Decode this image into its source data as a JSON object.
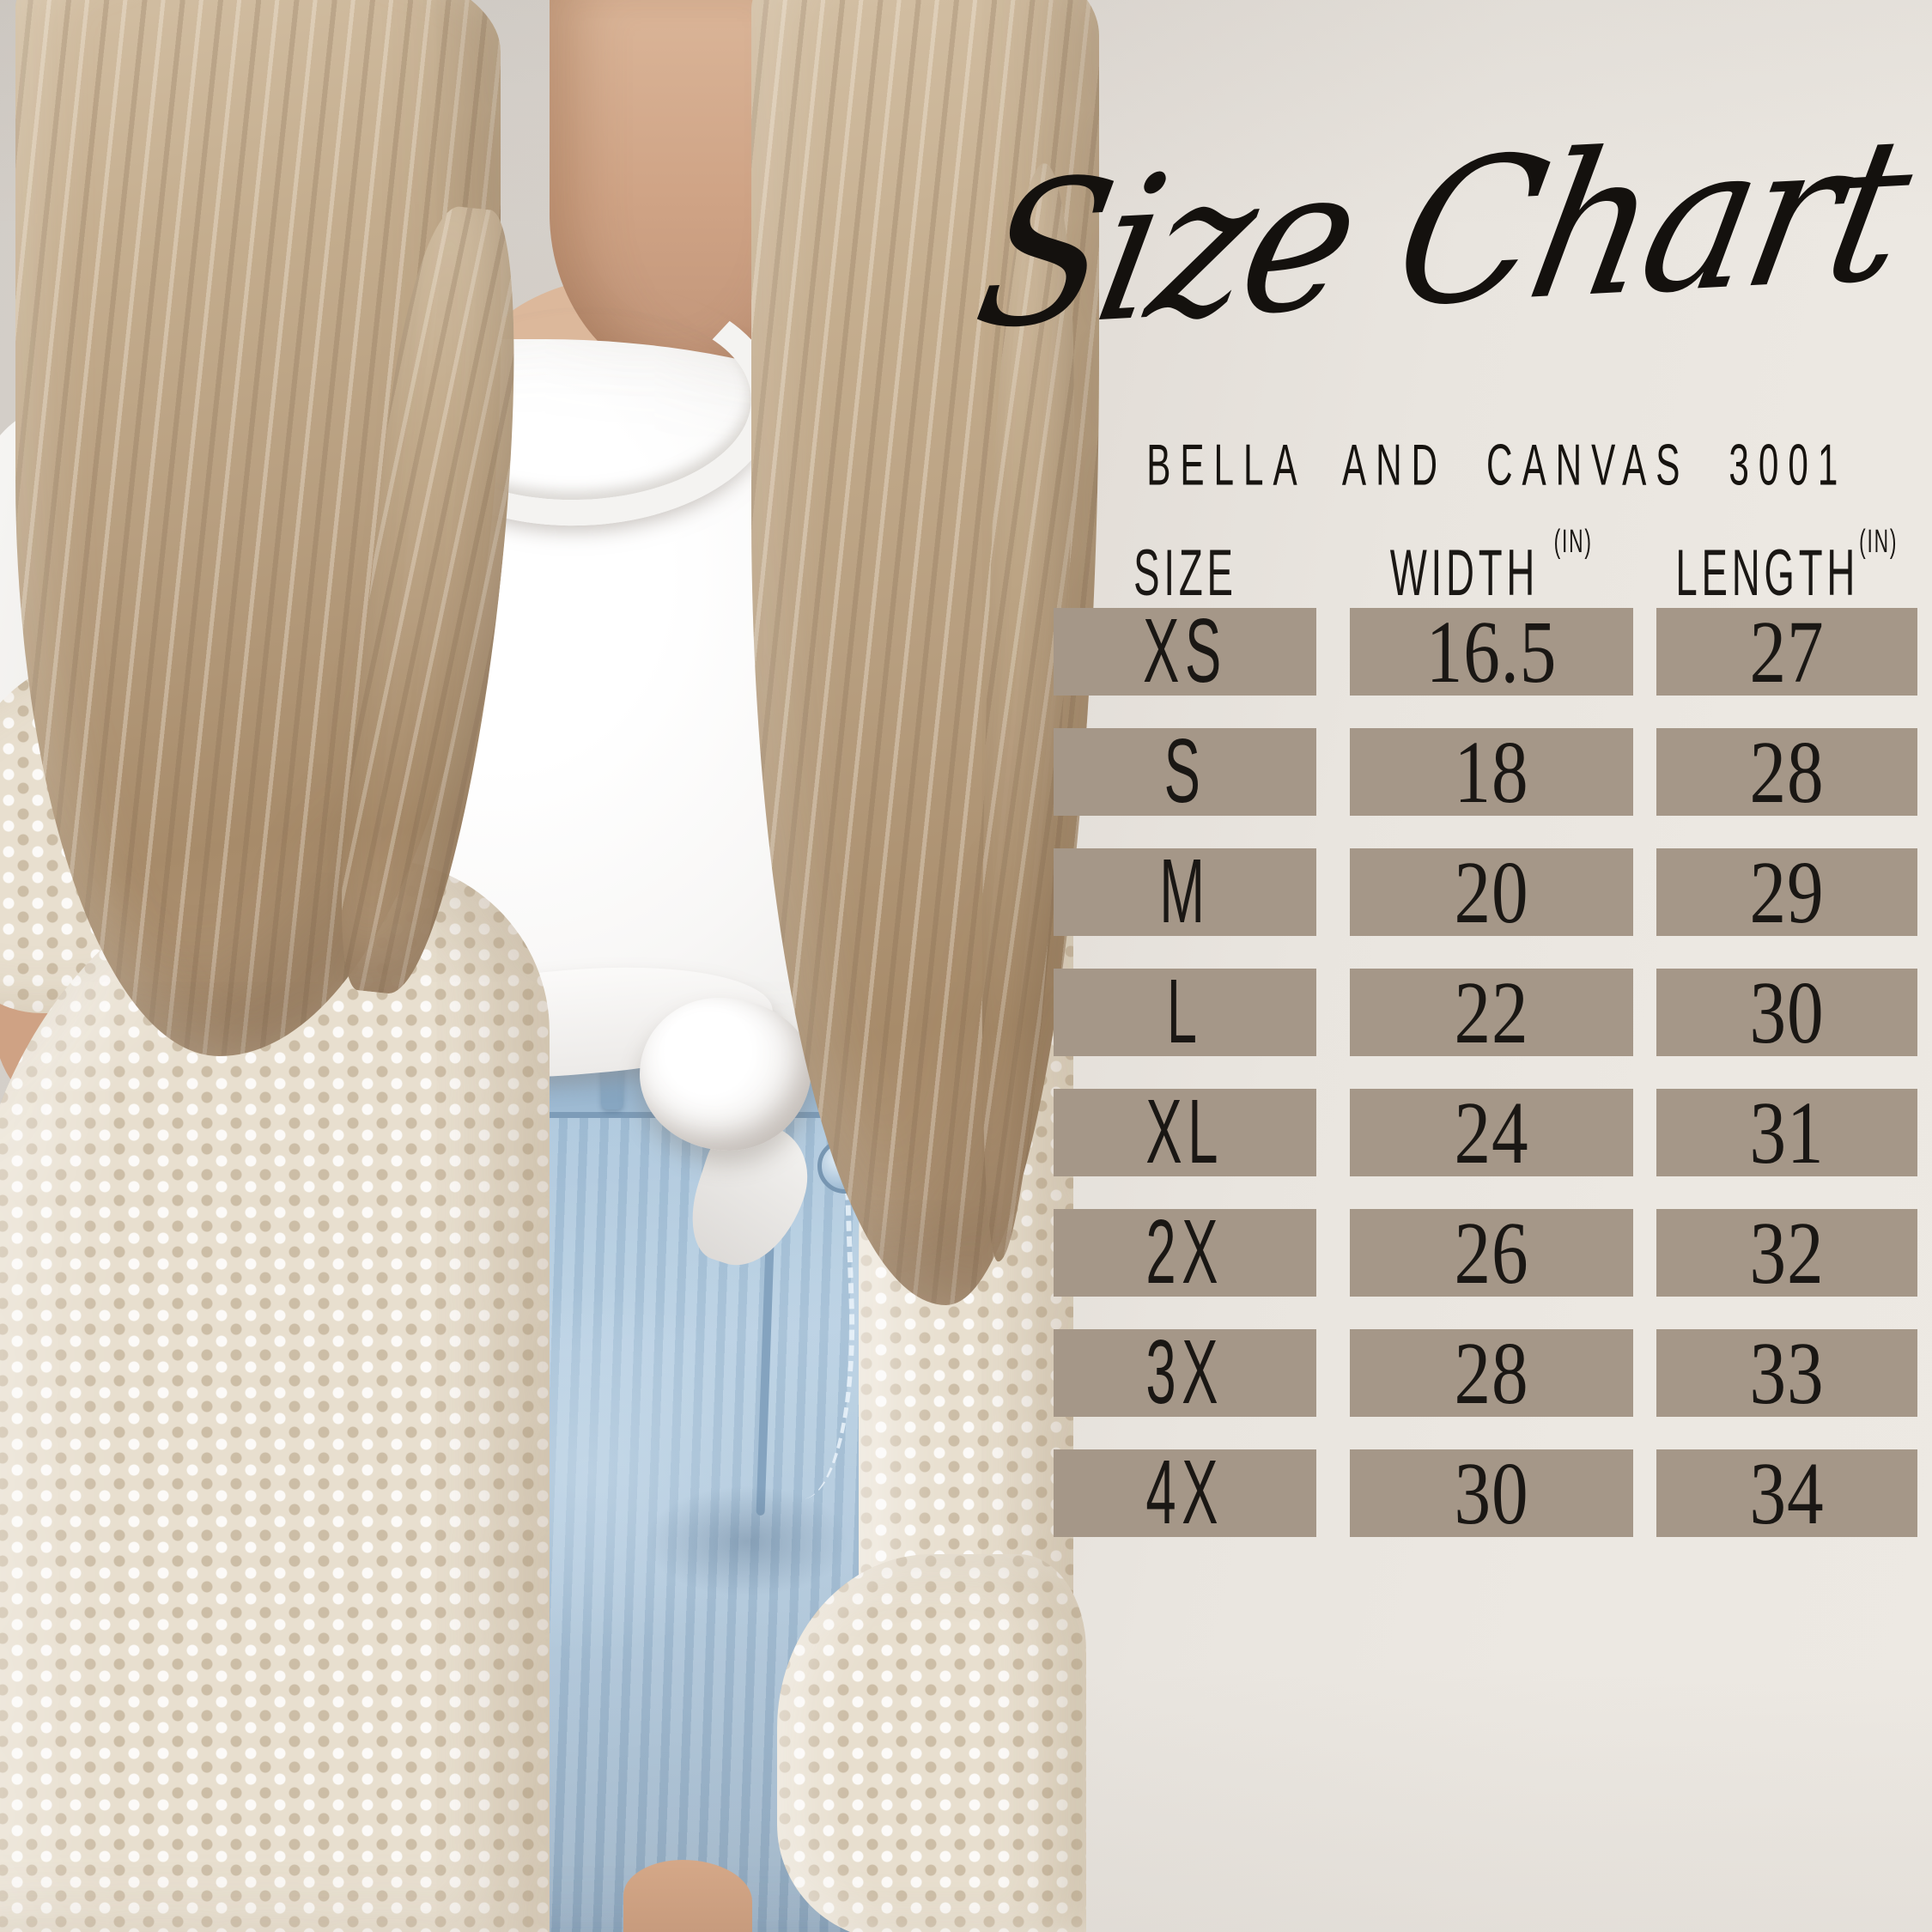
{
  "page": {
    "title": "Size Chart",
    "subtitle": "BELLA AND CANVAS 3001"
  },
  "table": {
    "headers": [
      {
        "label": "SIZE",
        "unit": ""
      },
      {
        "label": "WIDTH",
        "unit": "(IN)"
      },
      {
        "label": "LENGTH",
        "unit": "(IN)"
      }
    ],
    "rows": [
      {
        "size": "XS",
        "width": "16.5",
        "length": "27"
      },
      {
        "size": "S",
        "width": "18",
        "length": "28"
      },
      {
        "size": "M",
        "width": "20",
        "length": "29"
      },
      {
        "size": "L",
        "width": "22",
        "length": "30"
      },
      {
        "size": "XL",
        "width": "24",
        "length": "31"
      },
      {
        "size": "2X",
        "width": "26",
        "length": "32"
      },
      {
        "size": "3X",
        "width": "28",
        "length": "33"
      },
      {
        "size": "4X",
        "width": "30",
        "length": "34"
      }
    ]
  },
  "chart_data": {
    "type": "table",
    "title": "Size Chart",
    "subtitle": "BELLA AND CANVAS 3001",
    "columns": [
      "SIZE",
      "WIDTH (IN)",
      "LENGTH (IN)"
    ],
    "rows": [
      [
        "XS",
        16.5,
        27
      ],
      [
        "S",
        18,
        28
      ],
      [
        "M",
        20,
        29
      ],
      [
        "L",
        22,
        30
      ],
      [
        "XL",
        24,
        31
      ],
      [
        "2X",
        26,
        32
      ],
      [
        "3X",
        28,
        33
      ],
      [
        "4X",
        30,
        34
      ]
    ]
  },
  "colors": {
    "cell_background": "#a59788",
    "text": "#1a1714",
    "wall_left": "#d5d0ca",
    "wall_right": "#ece8e2",
    "cardigan": "#e8dfcf",
    "jeans": "#a7c3da"
  }
}
